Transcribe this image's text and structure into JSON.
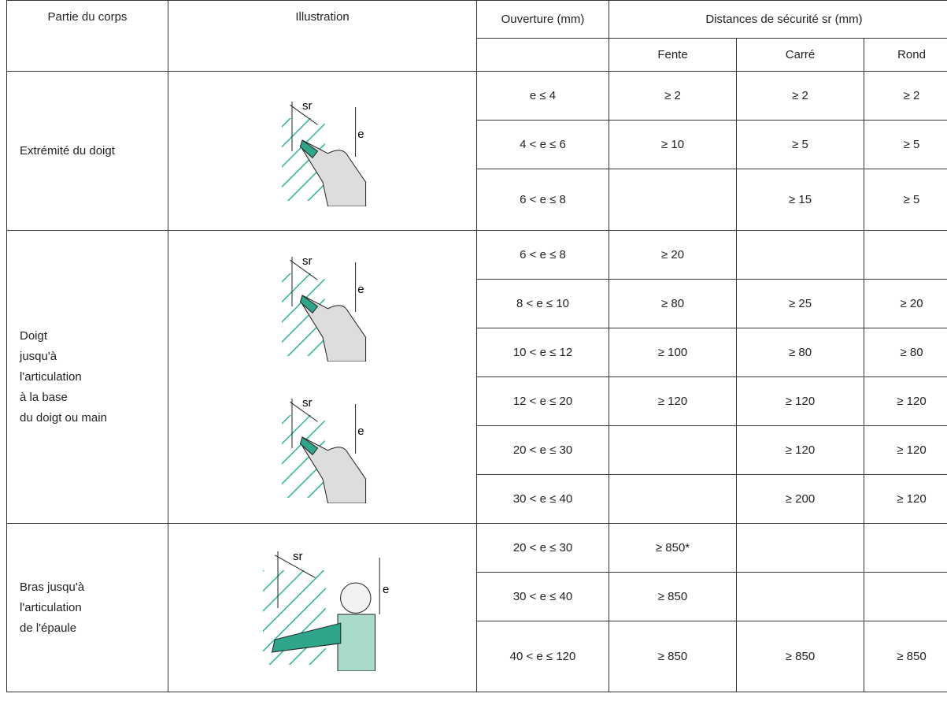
{
  "header": {
    "body_part": "Partie du corps",
    "illustration": "Illustration",
    "opening": "Ouverture (mm)",
    "distances": "Distances de sécurité sr (mm)",
    "subheaders": [
      "Fente",
      "Carré",
      "Rond"
    ]
  },
  "groups": [
    {
      "body_part": [
        "Extrémité du doigt"
      ],
      "illustrations": [
        {
          "sr": "sr",
          "e": "e"
        }
      ],
      "rows": [
        [
          "e ≤ 4",
          "≥ 2",
          "≥ 2",
          "≥ 2"
        ],
        [
          "4 < e ≤ 6",
          "≥ 10",
          "≥ 5",
          "≥ 5"
        ],
        [
          "6 < e ≤ 8",
          null,
          "≥ 15",
          "≥ 5"
        ]
      ]
    },
    {
      "body_part": [
        "Doigt",
        "jusqu'à",
        "l'articulation",
        "à la base",
        "du doigt ou main"
      ],
      "illustrations": [
        {
          "sr": "sr",
          "e": "e"
        },
        {
          "sr": "sr",
          "e": "e"
        }
      ],
      "rows": [
        [
          "6 < e ≤ 8",
          "≥ 20",
          null,
          null
        ],
        [
          "8 < e ≤ 10",
          "≥ 80",
          "≥ 25",
          "≥ 20"
        ],
        [
          "10 < e ≤ 12",
          "≥ 100",
          "≥ 80",
          "≥ 80"
        ],
        [
          "12 < e ≤ 20",
          "≥ 120",
          "≥ 120",
          "≥ 120"
        ],
        [
          "20 < e ≤ 30",
          null,
          "≥ 120",
          "≥ 120"
        ],
        [
          "30 < e ≤ 40",
          null,
          "≥ 200",
          "≥ 120"
        ]
      ]
    },
    {
      "body_part": [
        "Bras jusqu'à",
        "l'articulation",
        "de l'épaule"
      ],
      "illustrations": [
        {
          "sr": "sr",
          "e": "e"
        }
      ],
      "rows": [
        [
          "20 < e ≤ 30",
          "≥ 850*",
          null,
          null
        ],
        [
          "30 < e ≤ 40",
          "≥ 850",
          null,
          null
        ],
        [
          "40 < e ≤ 120",
          "≥ 850",
          "≥ 850",
          "≥ 850"
        ]
      ]
    }
  ]
}
